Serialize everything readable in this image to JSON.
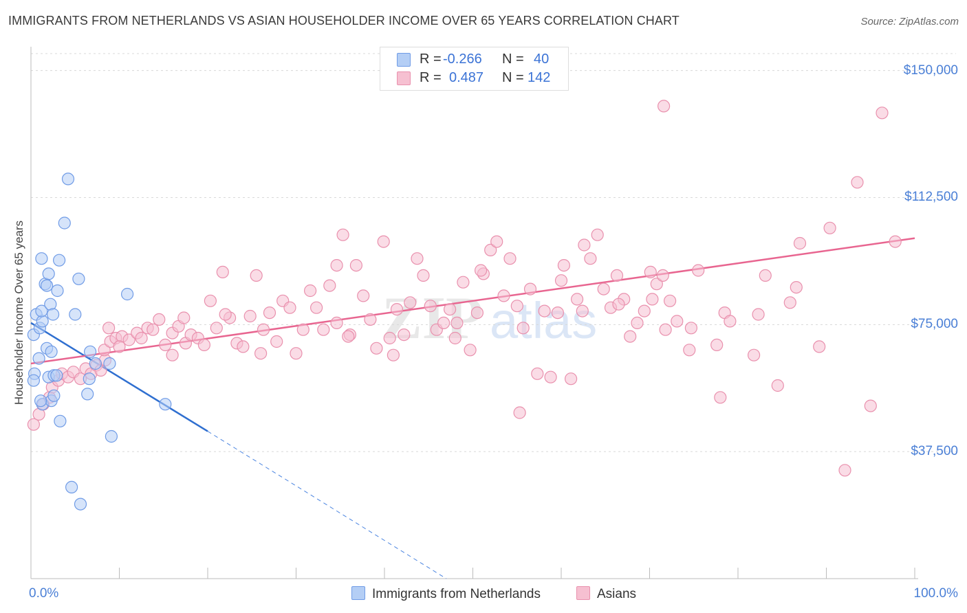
{
  "title": "IMMIGRANTS FROM NETHERLANDS VS ASIAN HOUSEHOLDER INCOME OVER 65 YEARS CORRELATION CHART",
  "source": "Source: ZipAtlas.com",
  "colors": {
    "blue": "#4a84e0",
    "blue_fill": "#b4cef5",
    "pink": "#e86590",
    "pink_fill": "#f6c0d1",
    "tick_text": "#4a7fd6"
  },
  "legend": {
    "rows": [
      {
        "r_label": "R =",
        "r_value": "-0.266",
        "n_label": "N =",
        "n_value": "40"
      },
      {
        "r_label": "R =",
        "r_value": "0.487",
        "n_label": "N =",
        "n_value": "142"
      }
    ]
  },
  "watermark": {
    "zip": "ZIP",
    "atlas": "atlas"
  },
  "chart_data": {
    "type": "scatter",
    "xlabel": "",
    "ylabel": "Householder Income Over 65 years",
    "xlim": [
      0,
      100
    ],
    "ylim": [
      0,
      155000
    ],
    "x_tick_labels": [
      "0.0%",
      "100.0%"
    ],
    "y_ticks": [
      37500,
      75000,
      112500,
      150000
    ],
    "y_tick_labels": [
      "$37,500",
      "$75,000",
      "$112,500",
      "$150,000"
    ],
    "grid": "horizontal dashed",
    "legend_position": "bottom",
    "series": [
      {
        "name": "Immigrants from Netherlands",
        "r": -0.266,
        "n": 40,
        "trend": {
          "x0": 0,
          "y0": 75500,
          "x1": 20,
          "y1": 43500,
          "dash_to_x": 47,
          "dash_to_y": 0
        },
        "points": [
          [
            0.4,
            60500
          ],
          [
            0.3,
            72000
          ],
          [
            0.6,
            78000
          ],
          [
            1.0,
            74000
          ],
          [
            1.3,
            76000
          ],
          [
            1.2,
            79000
          ],
          [
            2.2,
            81000
          ],
          [
            1.6,
            87000
          ],
          [
            1.8,
            86500
          ],
          [
            2.0,
            90000
          ],
          [
            3.0,
            85000
          ],
          [
            3.2,
            94000
          ],
          [
            1.2,
            94500
          ],
          [
            2.5,
            78000
          ],
          [
            1.8,
            68000
          ],
          [
            2.3,
            67000
          ],
          [
            0.9,
            65000
          ],
          [
            2.0,
            59500
          ],
          [
            2.6,
            60000
          ],
          [
            2.9,
            60000
          ],
          [
            4.2,
            118000
          ],
          [
            3.8,
            105000
          ],
          [
            5.4,
            88500
          ],
          [
            5.0,
            78000
          ],
          [
            10.9,
            84000
          ],
          [
            6.6,
            59000
          ],
          [
            6.7,
            67000
          ],
          [
            7.3,
            63500
          ],
          [
            8.9,
            63500
          ],
          [
            3.3,
            46500
          ],
          [
            1.3,
            51500
          ],
          [
            2.3,
            52500
          ],
          [
            2.6,
            54000
          ],
          [
            6.4,
            54500
          ],
          [
            15.2,
            51500
          ],
          [
            9.1,
            42000
          ],
          [
            4.6,
            27000
          ],
          [
            5.6,
            22000
          ],
          [
            0.3,
            58500
          ],
          [
            1.1,
            52500
          ]
        ]
      },
      {
        "name": "Asians",
        "r": 0.487,
        "n": 142,
        "trend": {
          "x0": 0,
          "y0": 63500,
          "x1": 100,
          "y1": 100500
        },
        "points": [
          [
            0.3,
            45500
          ],
          [
            0.9,
            48500
          ],
          [
            1.4,
            51500
          ],
          [
            2.1,
            53500
          ],
          [
            2.4,
            56500
          ],
          [
            3.1,
            58500
          ],
          [
            3.5,
            60500
          ],
          [
            4.2,
            59500
          ],
          [
            4.8,
            61000
          ],
          [
            5.6,
            59000
          ],
          [
            6.2,
            62000
          ],
          [
            6.8,
            60500
          ],
          [
            7.4,
            63000
          ],
          [
            7.9,
            61500
          ],
          [
            8.4,
            64500
          ],
          [
            8.3,
            67500
          ],
          [
            9.0,
            70000
          ],
          [
            9.6,
            71000
          ],
          [
            10.3,
            71500
          ],
          [
            11.1,
            70500
          ],
          [
            12.0,
            72500
          ],
          [
            12.5,
            71000
          ],
          [
            13.2,
            74000
          ],
          [
            13.8,
            73500
          ],
          [
            14.5,
            76500
          ],
          [
            15.2,
            69000
          ],
          [
            16.0,
            72500
          ],
          [
            16.7,
            74500
          ],
          [
            17.5,
            69500
          ],
          [
            18.1,
            72000
          ],
          [
            18.9,
            71000
          ],
          [
            19.6,
            69000
          ],
          [
            20.3,
            82000
          ],
          [
            21.0,
            74000
          ],
          [
            21.7,
            90500
          ],
          [
            22.5,
            77000
          ],
          [
            23.3,
            69500
          ],
          [
            24.0,
            68500
          ],
          [
            24.8,
            77500
          ],
          [
            25.5,
            89500
          ],
          [
            26.3,
            73500
          ],
          [
            27.0,
            78500
          ],
          [
            27.8,
            70000
          ],
          [
            28.5,
            82000
          ],
          [
            29.3,
            80000
          ],
          [
            30.0,
            66500
          ],
          [
            30.8,
            73500
          ],
          [
            31.6,
            85000
          ],
          [
            32.3,
            80000
          ],
          [
            33.1,
            73500
          ],
          [
            33.8,
            86500
          ],
          [
            34.6,
            75500
          ],
          [
            35.3,
            101500
          ],
          [
            36.1,
            72000
          ],
          [
            36.8,
            92500
          ],
          [
            37.6,
            83500
          ],
          [
            38.4,
            76500
          ],
          [
            39.1,
            68000
          ],
          [
            39.9,
            99500
          ],
          [
            40.6,
            71000
          ],
          [
            41.4,
            79500
          ],
          [
            42.2,
            72000
          ],
          [
            42.9,
            81500
          ],
          [
            43.7,
            94500
          ],
          [
            44.4,
            89500
          ],
          [
            45.2,
            80500
          ],
          [
            45.9,
            73500
          ],
          [
            46.7,
            75500
          ],
          [
            47.4,
            79500
          ],
          [
            48.2,
            75500
          ],
          [
            48.9,
            87500
          ],
          [
            49.7,
            67500
          ],
          [
            50.5,
            78500
          ],
          [
            51.2,
            90000
          ],
          [
            52.0,
            97000
          ],
          [
            52.7,
            99500
          ],
          [
            53.5,
            83500
          ],
          [
            54.2,
            94500
          ],
          [
            55.0,
            80500
          ],
          [
            55.7,
            74000
          ],
          [
            56.5,
            85500
          ],
          [
            57.3,
            60500
          ],
          [
            58.1,
            79000
          ],
          [
            58.8,
            59500
          ],
          [
            59.6,
            78500
          ],
          [
            60.3,
            92500
          ],
          [
            61.1,
            59000
          ],
          [
            61.8,
            82500
          ],
          [
            62.6,
            98500
          ],
          [
            63.3,
            94500
          ],
          [
            64.1,
            101500
          ],
          [
            64.8,
            85500
          ],
          [
            65.6,
            80000
          ],
          [
            66.3,
            89500
          ],
          [
            67.1,
            82500
          ],
          [
            67.8,
            71500
          ],
          [
            68.6,
            75500
          ],
          [
            69.4,
            79000
          ],
          [
            70.1,
            90500
          ],
          [
            70.8,
            87000
          ],
          [
            71.6,
            139500
          ],
          [
            72.3,
            82000
          ],
          [
            73.1,
            76000
          ],
          [
            74.7,
            74000
          ],
          [
            75.5,
            91000
          ],
          [
            77.6,
            69000
          ],
          [
            78.5,
            78500
          ],
          [
            79.1,
            76000
          ],
          [
            82.3,
            78000
          ],
          [
            83.1,
            89500
          ],
          [
            84.5,
            57000
          ],
          [
            87.0,
            99000
          ],
          [
            89.2,
            68500
          ],
          [
            90.4,
            103500
          ],
          [
            92.1,
            32000
          ],
          [
            93.5,
            117000
          ],
          [
            95.0,
            51000
          ],
          [
            96.3,
            137500
          ],
          [
            97.8,
            99500
          ],
          [
            70.3,
            82500
          ],
          [
            55.3,
            49000
          ],
          [
            17.3,
            77000
          ],
          [
            8.8,
            74000
          ],
          [
            10.0,
            68500
          ],
          [
            26.0,
            66500
          ],
          [
            41.0,
            66000
          ],
          [
            60.0,
            88000
          ],
          [
            66.5,
            81000
          ],
          [
            71.5,
            89500
          ],
          [
            74.5,
            67500
          ],
          [
            85.9,
            81500
          ],
          [
            86.6,
            86000
          ],
          [
            34.6,
            92500
          ],
          [
            48.0,
            71000
          ],
          [
            50.9,
            91000
          ],
          [
            62.4,
            79000
          ],
          [
            81.8,
            66000
          ],
          [
            71.8,
            73500
          ],
          [
            78.0,
            53500
          ],
          [
            16.0,
            66000
          ],
          [
            22.0,
            78000
          ],
          [
            35.9,
            71500
          ]
        ]
      }
    ]
  }
}
